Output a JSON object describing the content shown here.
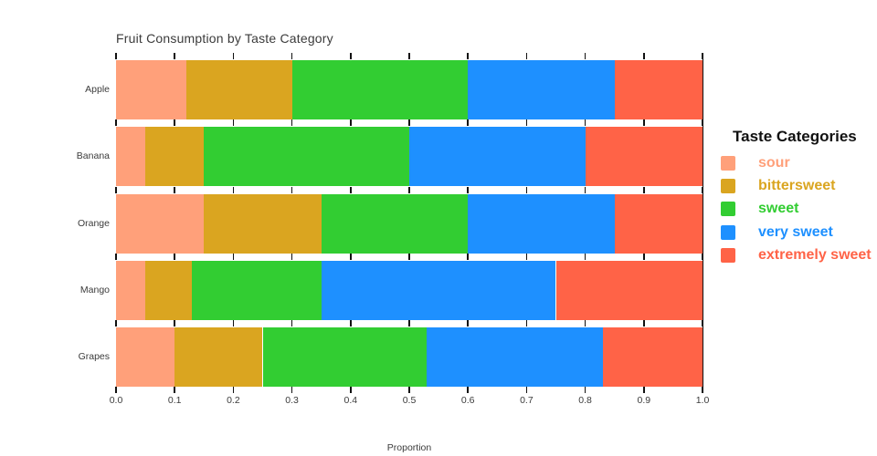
{
  "chart_data": {
    "type": "bar",
    "orientation": "horizontal",
    "stacked": true,
    "title": "Fruit Consumption by Taste Category",
    "xlabel": "Proportion",
    "ylabel": "",
    "categories": [
      "Apple",
      "Banana",
      "Orange",
      "Mango",
      "Grapes"
    ],
    "series": [
      {
        "name": "sour",
        "color": "#FFA07A",
        "values": [
          0.12,
          0.05,
          0.15,
          0.05,
          0.1
        ]
      },
      {
        "name": "bittersweet",
        "color": "#DAA520",
        "values": [
          0.18,
          0.1,
          0.2,
          0.08,
          0.15
        ]
      },
      {
        "name": "sweet",
        "color": "#32CD32",
        "values": [
          0.3,
          0.35,
          0.25,
          0.22,
          0.28
        ]
      },
      {
        "name": "very sweet",
        "color": "#1E90FF",
        "values": [
          0.25,
          0.3,
          0.25,
          0.4,
          0.3
        ]
      },
      {
        "name": "extremely sweet",
        "color": "#FF6347",
        "values": [
          0.15,
          0.2,
          0.15,
          0.25,
          0.17
        ]
      }
    ],
    "xlim": [
      0.0,
      1.0
    ],
    "xticks": [
      "0.0",
      "0.1",
      "0.2",
      "0.3",
      "0.4",
      "0.5",
      "0.6",
      "0.7",
      "0.8",
      "0.9",
      "1.0"
    ],
    "grid": false,
    "legend_position": "right"
  },
  "legend": {
    "title": "Taste Categories"
  },
  "colors": {
    "axis_text": "#3b3b3b",
    "tick_mark": "#111111",
    "background": "#ffffff"
  }
}
